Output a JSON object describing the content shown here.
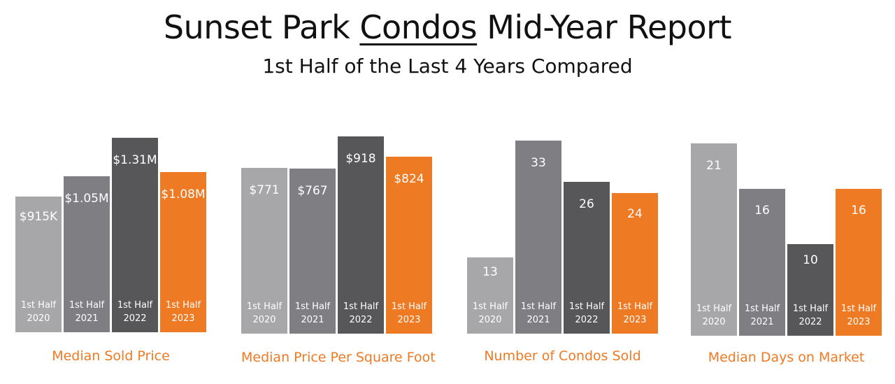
{
  "title_parts": [
    "Sunset Park ",
    "Condos",
    " Mid-Year Report"
  ],
  "subtitle": "1st Half of the Last 4 Years Compared",
  "colors": [
    "#a7a7a9",
    "#7f7f83",
    "#575759",
    "#ee7a23"
  ],
  "chart_data": [
    {
      "type": "bar",
      "title": "Median Sold Price",
      "categories": [
        [
          "1st Half",
          "2020"
        ],
        [
          "1st Half",
          "2021"
        ],
        [
          "1st Half",
          "2022"
        ],
        [
          "1st Half",
          "2023"
        ]
      ],
      "values": [
        915000,
        1050000,
        1310000,
        1080000
      ],
      "labels": [
        "$915K",
        "$1.05M",
        "$1.31M",
        "$1.08M"
      ],
      "ylim": [
        0,
        1310000
      ]
    },
    {
      "type": "bar",
      "title": "Median Price Per Square Foot",
      "categories": [
        [
          "1st Half",
          "2020"
        ],
        [
          "1st Half",
          "2021"
        ],
        [
          "1st Half",
          "2022"
        ],
        [
          "1st Half",
          "2023"
        ]
      ],
      "values": [
        771,
        767,
        918,
        824
      ],
      "labels": [
        "$771",
        "$767",
        "$918",
        "$824"
      ],
      "ylim": [
        0,
        918
      ]
    },
    {
      "type": "bar",
      "title": "Number of Condos Sold",
      "categories": [
        [
          "1st Half",
          "2020"
        ],
        [
          "1st Half",
          "2021"
        ],
        [
          "1st Half",
          "2022"
        ],
        [
          "1st Half",
          "2023"
        ]
      ],
      "values": [
        13,
        33,
        26,
        24
      ],
      "labels": [
        "13",
        "33",
        "26",
        "24"
      ],
      "ylim": [
        0,
        33
      ]
    },
    {
      "type": "bar",
      "title": "Median Days on Market",
      "categories": [
        [
          "1st Half",
          "2020"
        ],
        [
          "1st Half",
          "2021"
        ],
        [
          "1st Half",
          "2022"
        ],
        [
          "1st Half",
          "2023"
        ]
      ],
      "values": [
        21,
        16,
        10,
        16
      ],
      "labels": [
        "21",
        "16",
        "10",
        "16"
      ],
      "ylim": [
        0,
        21
      ]
    }
  ]
}
